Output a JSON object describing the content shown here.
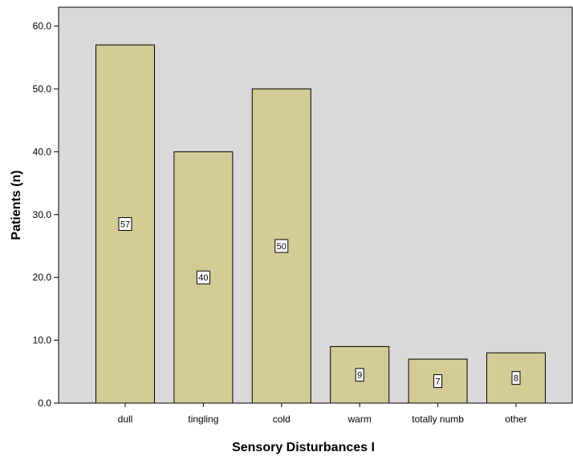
{
  "chart_data": {
    "type": "bar",
    "title": "",
    "xlabel": "Sensory Disturbances I",
    "ylabel": "Patients (n)",
    "categories": [
      "dull",
      "tingling",
      "cold",
      "warm",
      "totally numb",
      "other"
    ],
    "values": [
      57,
      40,
      50,
      9,
      7,
      8
    ],
    "value_labels": [
      "57",
      "40",
      "50",
      "9",
      "7",
      "8"
    ],
    "ylim": [
      0,
      63
    ],
    "yticks": [
      0,
      10,
      20,
      30,
      40,
      50,
      60
    ],
    "ytick_labels": [
      "0.0",
      "10.0",
      "20.0",
      "30.0",
      "40.0",
      "50.0",
      "60.0"
    ],
    "grid": false,
    "legend": "none",
    "colors": {
      "bar_fill": "#d3cc96",
      "bar_stroke": "#000000",
      "plot_background": "#d9d9d9",
      "page_background": "#ffffff"
    }
  }
}
